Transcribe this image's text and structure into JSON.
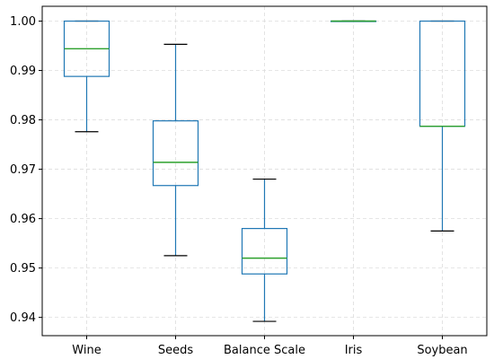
{
  "chart_data": {
    "type": "boxplot",
    "title": "",
    "xlabel": "",
    "ylabel": "",
    "categories": [
      "Wine",
      "Seeds",
      "Balance Scale",
      "Iris",
      "Soybean"
    ],
    "boxes": [
      {
        "category": "Wine",
        "whisker_low": 0.9776,
        "q1": 0.9888,
        "median": 0.9944,
        "q3": 1.0,
        "whisker_high": 1.0
      },
      {
        "category": "Seeds",
        "whisker_low": 0.9525,
        "q1": 0.9667,
        "median": 0.9714,
        "q3": 0.9798,
        "whisker_high": 0.9953
      },
      {
        "category": "Balance Scale",
        "whisker_low": 0.9392,
        "q1": 0.9488,
        "median": 0.952,
        "q3": 0.958,
        "whisker_high": 0.968
      },
      {
        "category": "Iris",
        "whisker_low": 1.0,
        "q1": 1.0,
        "median": 1.0,
        "q3": 1.0,
        "whisker_high": 1.0
      },
      {
        "category": "Soybean",
        "whisker_low": 0.9575,
        "q1": 0.9787,
        "median": 0.9787,
        "q3": 1.0,
        "whisker_high": 1.0
      }
    ],
    "y_ticks": [
      0.94,
      0.95,
      0.96,
      0.97,
      0.98,
      0.99,
      1.0
    ],
    "y_tick_labels": [
      "0.94",
      "0.95",
      "0.96",
      "0.97",
      "0.98",
      "0.99",
      "1.00"
    ],
    "ylim": [
      0.9363,
      1.003
    ],
    "grid": true,
    "legend": "none",
    "colors": {
      "box": "#1f77b4",
      "median": "#2ca02c",
      "whisker_cap": "#000000",
      "grid": "#dddddd",
      "axes": "#000000"
    }
  }
}
